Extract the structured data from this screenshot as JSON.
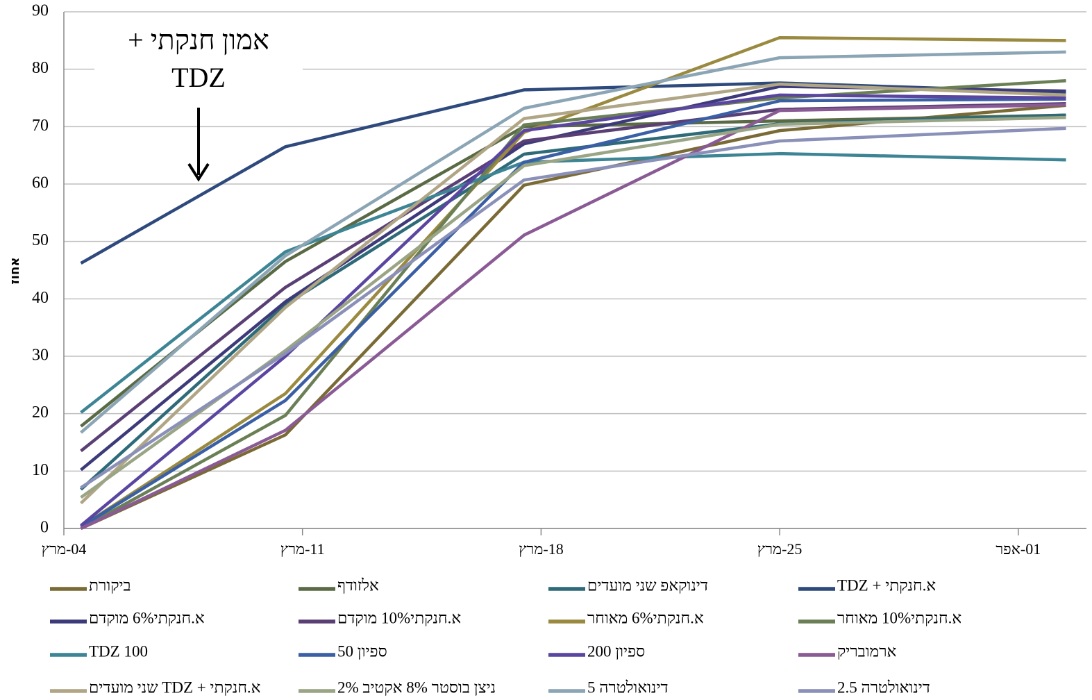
{
  "chart_data": {
    "type": "line",
    "y_label": "אחוז",
    "annotation": [
      "אמון חנקתי +",
      "TDZ"
    ],
    "x": [
      0.5,
      6.5,
      13.5,
      21,
      29.4
    ],
    "xlim": [
      0,
      30
    ],
    "xticks": [
      {
        "value": 0,
        "label": "04-מרץ"
      },
      {
        "value": 7,
        "label": "11-מרץ"
      },
      {
        "value": 14,
        "label": "18-מרץ"
      },
      {
        "value": 21,
        "label": "25-מרץ"
      },
      {
        "value": 28,
        "label": "01-אפר"
      }
    ],
    "ylim": [
      0,
      90
    ],
    "yticks": [
      0,
      10,
      20,
      30,
      40,
      50,
      60,
      70,
      80,
      90
    ],
    "grid": true,
    "series": [
      {
        "name": "ביקורת",
        "color": "#7a6a35",
        "values": [
          0,
          16.3,
          59.8,
          69.3,
          73.7
        ]
      },
      {
        "name": "אלזודף",
        "color": "#5a6a45",
        "values": [
          17.8,
          46.5,
          70,
          71,
          72
        ]
      },
      {
        "name": "דינוקאפ שני מועדים",
        "color": "#2e6a78",
        "values": [
          6.8,
          39,
          65.2,
          70.5,
          72
        ]
      },
      {
        "name": "א.חנקתי + TDZ",
        "color": "#2e4a7c",
        "values": [
          46.2,
          66.5,
          76.4,
          77.6,
          76
        ]
      },
      {
        "name": "א.חנקתי6% מוקדם",
        "color": "#3d3a7a",
        "values": [
          10.2,
          39.5,
          67,
          77,
          76.2
        ]
      },
      {
        "name": "א.חנקתי10% מוקדם",
        "color": "#5a3f75",
        "values": [
          13.5,
          42,
          67.5,
          73,
          74
        ]
      },
      {
        "name": "א.חנקתי6% מאוחר",
        "color": "#9a8a40",
        "values": [
          0.3,
          23.5,
          69,
          85.5,
          85
        ]
      },
      {
        "name": "א.חנקתי10% מאוחר",
        "color": "#6a7f55",
        "values": [
          0,
          19.7,
          70.3,
          75,
          78
        ]
      },
      {
        "name": "TDZ 100",
        "color": "#3d8595",
        "values": [
          20.2,
          48.2,
          63.8,
          65.3,
          64.2
        ]
      },
      {
        "name": "ספיון 50",
        "color": "#3a5fa5",
        "values": [
          0.3,
          22.3,
          63.8,
          74.5,
          74.8
        ]
      },
      {
        "name": "ספיון 200",
        "color": "#5a45a0",
        "values": [
          0.5,
          30,
          69.3,
          75.5,
          75
        ]
      },
      {
        "name": "ארמובריק",
        "color": "#8a5a95",
        "values": [
          0,
          17.1,
          51.1,
          72.8,
          73.8
        ]
      },
      {
        "name": "א.חנקתי + TDZ שני מועדים",
        "color": "#b0a585",
        "values": [
          4.4,
          38.5,
          71.4,
          77.4,
          75.5
        ]
      },
      {
        "name": "ניצן בוסטר 8% אקטיב 2%",
        "color": "#9aa585",
        "values": [
          5.4,
          31,
          63.2,
          70.4,
          71.6
        ]
      },
      {
        "name": "דינואולטרה 5",
        "color": "#8ba5b5",
        "values": [
          16.7,
          47.5,
          73.2,
          82,
          83
        ]
      },
      {
        "name": "דינואולטרה 2.5",
        "color": "#8a90b8",
        "values": [
          7.1,
          30.5,
          60.7,
          67.5,
          69.7
        ]
      }
    ]
  }
}
